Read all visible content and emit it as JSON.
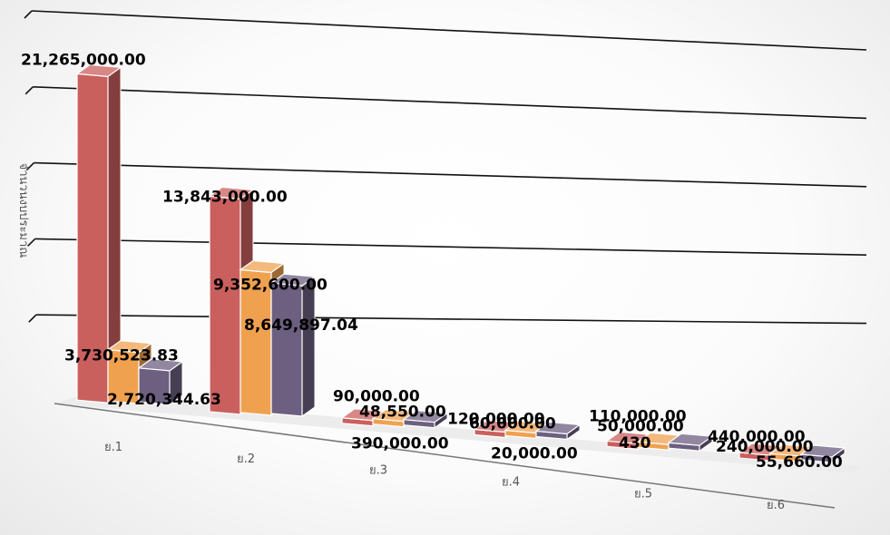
{
  "chart_data": {
    "type": "bar",
    "variant": "3d-clustered-column",
    "categories": [
      "ย.1",
      "ย.2",
      "ย.3",
      "ย.4",
      "ย.5",
      "ย.6"
    ],
    "series": [
      {
        "values": [
          21265000,
          13843000,
          90000,
          120000,
          110000,
          440000
        ],
        "labels": [
          "21,265,000.00",
          "13,843,000.00",
          "90,000.00",
          "120,000.00",
          "110,000.00",
          "440,000.00"
        ]
      },
      {
        "values": [
          3730523.83,
          9352600,
          48550,
          60000,
          50000,
          240000
        ],
        "labels": [
          "3,730,523.83",
          "9,352,600.00",
          "48,550.00",
          "60,000.00",
          "50,000.00",
          "240,000.00"
        ]
      },
      {
        "values": [
          2720344.63,
          8649897.04,
          390000,
          20000,
          430,
          55660
        ],
        "labels": [
          "2,720,344.63",
          "8,649,897.04",
          "390,000.00",
          "20,000.00",
          "430",
          "55,660.00"
        ]
      }
    ],
    "ylabel": "จำนวนงบประมาณ",
    "ylim": [
      0,
      25000000
    ],
    "grid": true,
    "colors": [
      "#c9605e",
      "#f0a150",
      "#6c5f80"
    ]
  }
}
